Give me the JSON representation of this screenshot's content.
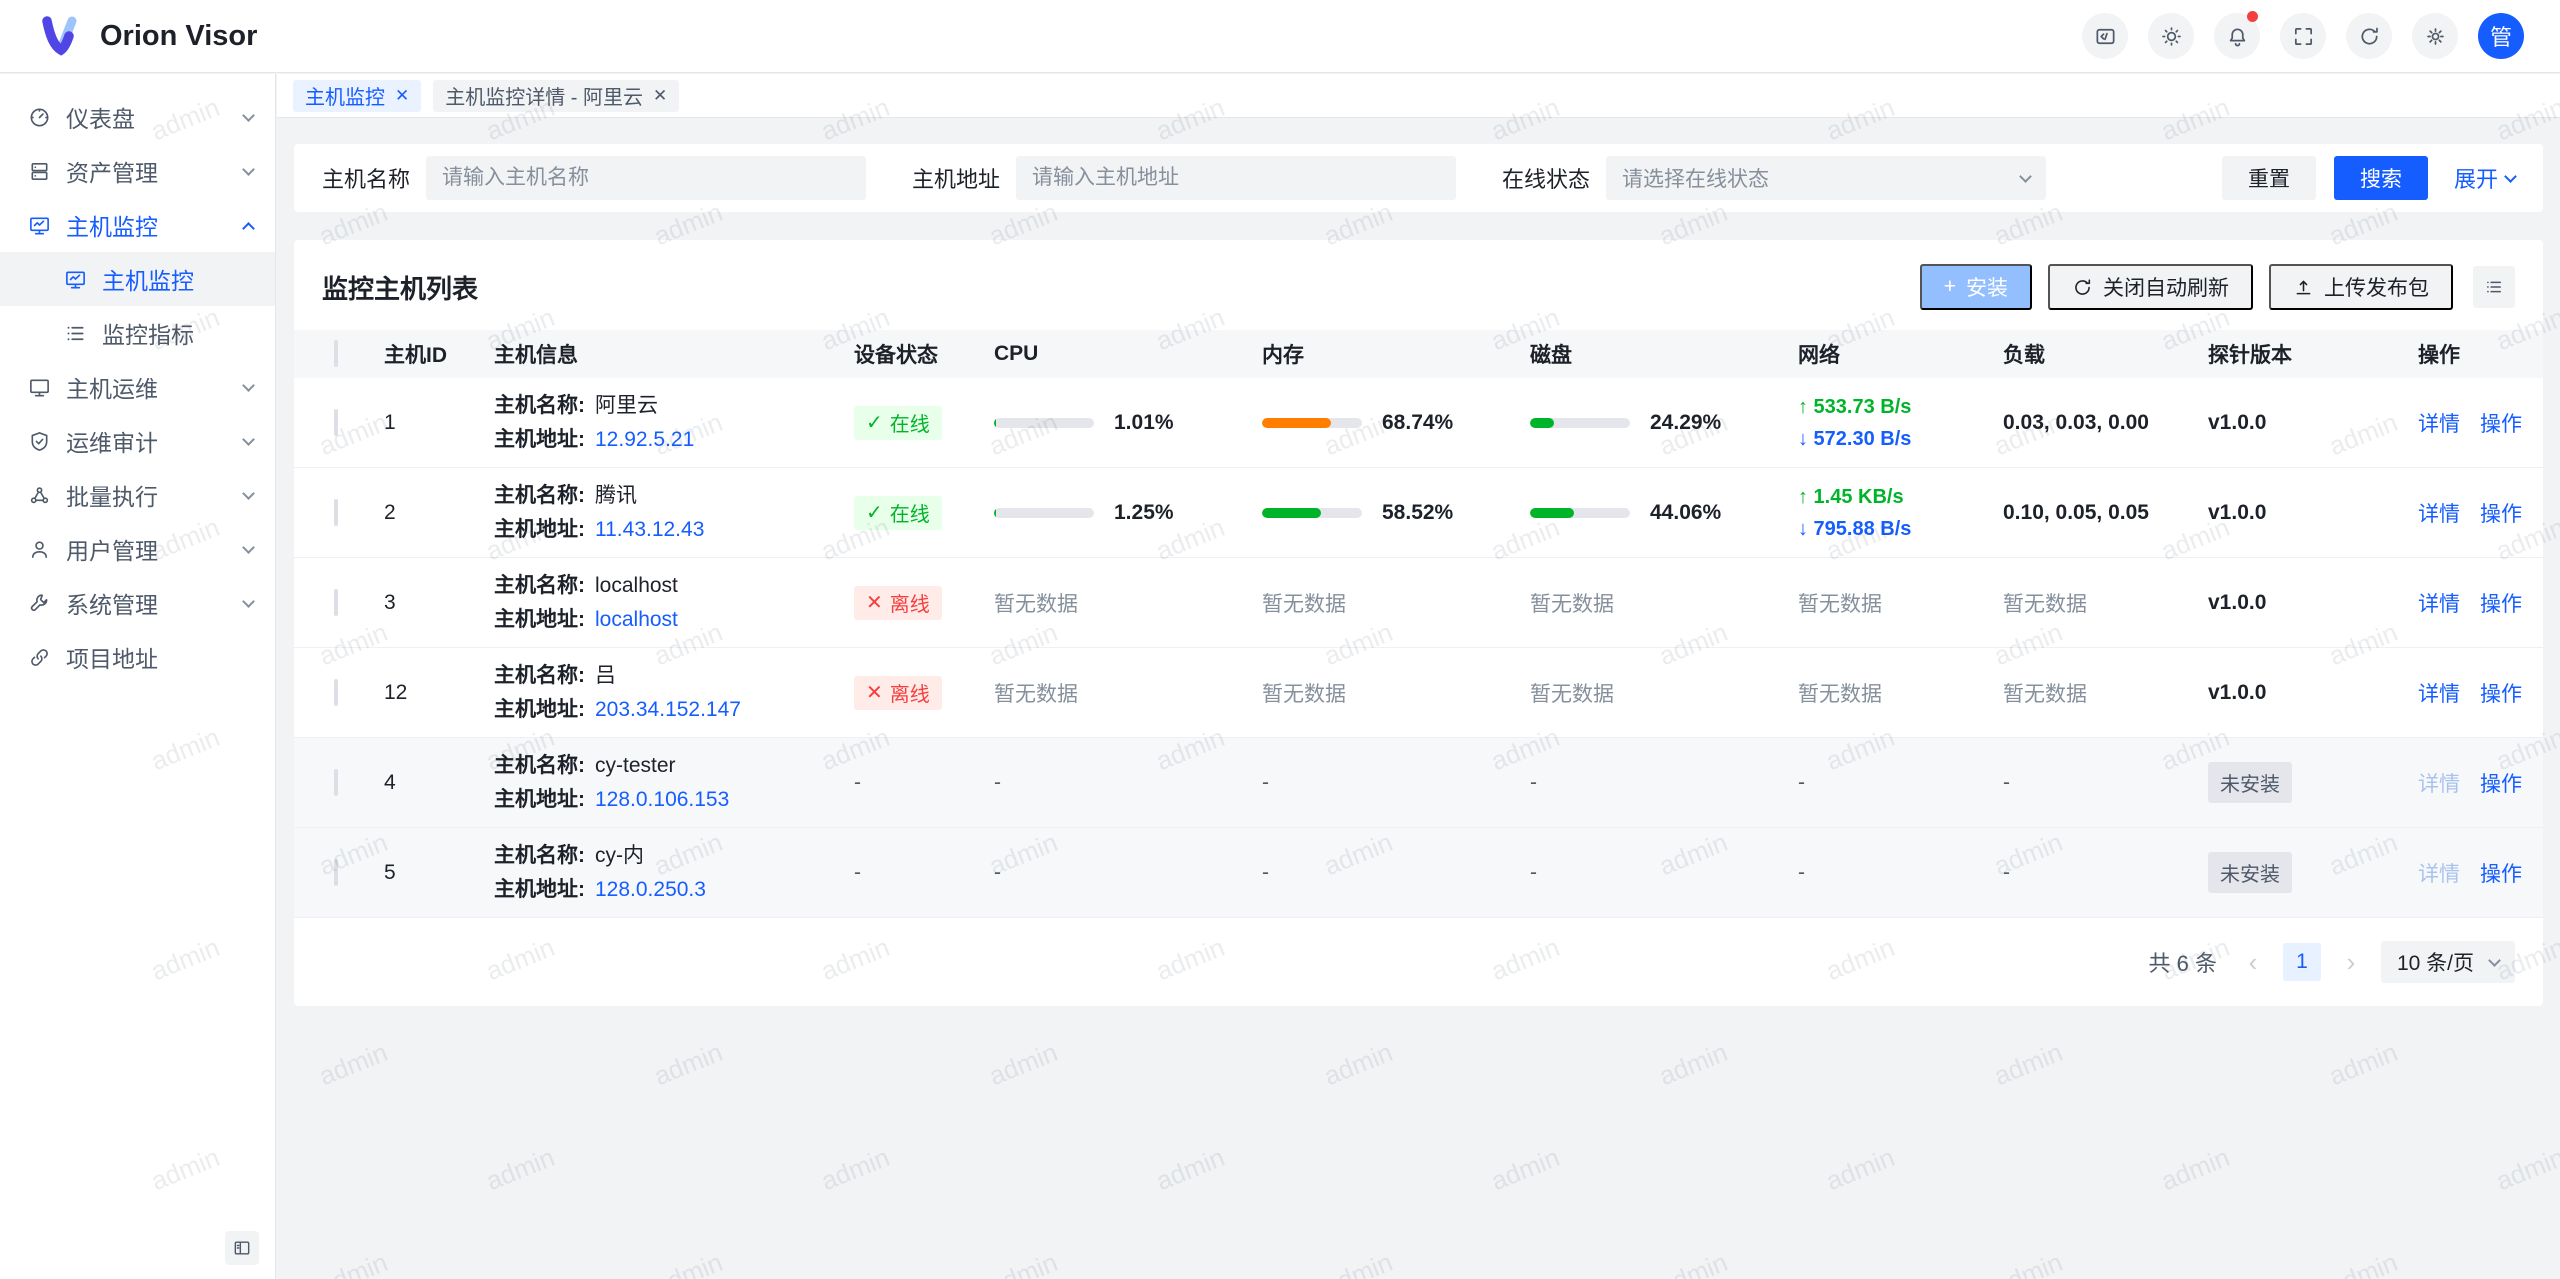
{
  "app": {
    "name": "Orion Visor",
    "avatar_text": "管"
  },
  "topbar": {
    "icons": [
      "code-icon",
      "theme-icon",
      "notifications-icon",
      "fullscreen-icon",
      "refresh-icon",
      "settings-icon"
    ]
  },
  "tabs": [
    {
      "label": "主机监控",
      "active": true
    },
    {
      "label": "主机监控详情 - 阿里云",
      "active": false
    }
  ],
  "sidebar": {
    "items": [
      {
        "label": "仪表盘",
        "icon": "dashboard",
        "chevron": true,
        "active": false
      },
      {
        "label": "资产管理",
        "icon": "assets",
        "chevron": true,
        "active": false
      },
      {
        "label": "主机监控",
        "icon": "monitor-chart",
        "chevron": true,
        "active": true,
        "children": [
          {
            "label": "主机监控",
            "icon": "monitor-chart",
            "active": true
          },
          {
            "label": "监控指标",
            "icon": "list",
            "active": false
          }
        ]
      },
      {
        "label": "主机运维",
        "icon": "monitor",
        "chevron": true,
        "active": false
      },
      {
        "label": "运维审计",
        "icon": "shield-check",
        "chevron": true,
        "active": false
      },
      {
        "label": "批量执行",
        "icon": "cluster",
        "chevron": true,
        "active": false
      },
      {
        "label": "用户管理",
        "icon": "user",
        "chevron": true,
        "active": false
      },
      {
        "label": "系统管理",
        "icon": "wrench",
        "chevron": true,
        "active": false
      },
      {
        "label": "项目地址",
        "icon": "link",
        "chevron": false,
        "active": false
      }
    ]
  },
  "filter": {
    "fields": [
      {
        "label": "主机名称",
        "placeholder": "请输入主机名称",
        "type": "input"
      },
      {
        "label": "主机地址",
        "placeholder": "请输入主机地址",
        "type": "input"
      },
      {
        "label": "在线状态",
        "placeholder": "请选择在线状态",
        "type": "select"
      }
    ],
    "reset": "重置",
    "search": "搜索",
    "expand": "展开"
  },
  "list": {
    "title": "监控主机列表",
    "toolbar": {
      "install": "安装",
      "toggle_refresh": "关闭自动刷新",
      "upload": "上传发布包"
    },
    "columns": [
      "主机ID",
      "主机信息",
      "设备状态",
      "CPU",
      "内存",
      "磁盘",
      "网络",
      "负载",
      "探针版本",
      "操作"
    ],
    "text": {
      "name_label": "主机名称:",
      "addr_label": "主机地址:",
      "online": "在线",
      "offline": "离线",
      "no_data": "暂无数据",
      "empty": "-",
      "not_installed": "未安装",
      "detail": "详情",
      "action": "操作"
    },
    "rows": [
      {
        "id": "1",
        "name": "阿里云",
        "address": "12.92.5.21",
        "status": "online",
        "mode": "bars",
        "cpu": {
          "pct": 1.01,
          "label": "1.01%",
          "color": "#00b42a"
        },
        "mem": {
          "pct": 68.74,
          "label": "68.74%",
          "color": "#ff7d00"
        },
        "disk": {
          "pct": 24.29,
          "label": "24.29%",
          "color": "#00b42a"
        },
        "net_up": "533.73 B/s",
        "net_down": "572.30 B/s",
        "load": "0.03, 0.03, 0.00",
        "version": "v1.0.0",
        "installed": true,
        "detail_enabled": true,
        "shaded": false
      },
      {
        "id": "2",
        "name": "腾讯",
        "address": "11.43.12.43",
        "status": "online",
        "mode": "bars",
        "cpu": {
          "pct": 1.25,
          "label": "1.25%",
          "color": "#00b42a"
        },
        "mem": {
          "pct": 58.52,
          "label": "58.52%",
          "color": "#00b42a"
        },
        "disk": {
          "pct": 44.06,
          "label": "44.06%",
          "color": "#00b42a"
        },
        "net_up": "1.45 KB/s",
        "net_down": "795.88 B/s",
        "load": "0.10, 0.05, 0.05",
        "version": "v1.0.0",
        "installed": true,
        "detail_enabled": true,
        "shaded": false
      },
      {
        "id": "3",
        "name": "localhost",
        "address": "localhost",
        "status": "offline",
        "mode": "no_data",
        "load": "",
        "version": "v1.0.0",
        "installed": true,
        "detail_enabled": true,
        "shaded": false
      },
      {
        "id": "12",
        "name": "吕",
        "address": "203.34.152.147",
        "status": "offline",
        "mode": "no_data",
        "load": "",
        "version": "v1.0.0",
        "installed": true,
        "detail_enabled": true,
        "shaded": false
      },
      {
        "id": "4",
        "name": "cy-tester",
        "address": "128.0.106.153",
        "status": "none",
        "mode": "empty",
        "load": "",
        "version": "",
        "installed": false,
        "detail_enabled": false,
        "shaded": true
      },
      {
        "id": "5",
        "name": "cy-内",
        "address": "128.0.250.3",
        "status": "none",
        "mode": "empty",
        "load": "",
        "version": "",
        "installed": false,
        "detail_enabled": false,
        "shaded": true
      }
    ]
  },
  "pagination": {
    "total": "共 6 条",
    "current": "1",
    "size": "10 条/页"
  },
  "watermark": {
    "text": "admin"
  },
  "glyphs": {
    "close": "✕",
    "check": "✓",
    "cross": "✕",
    "plus": "+",
    "up": "↑",
    "down": "↓",
    "prev": "‹",
    "next": "›"
  },
  "colors": {
    "primary": "#165dff",
    "green": "#00b42a",
    "red": "#f53f3f",
    "orange": "#ff7d00"
  }
}
